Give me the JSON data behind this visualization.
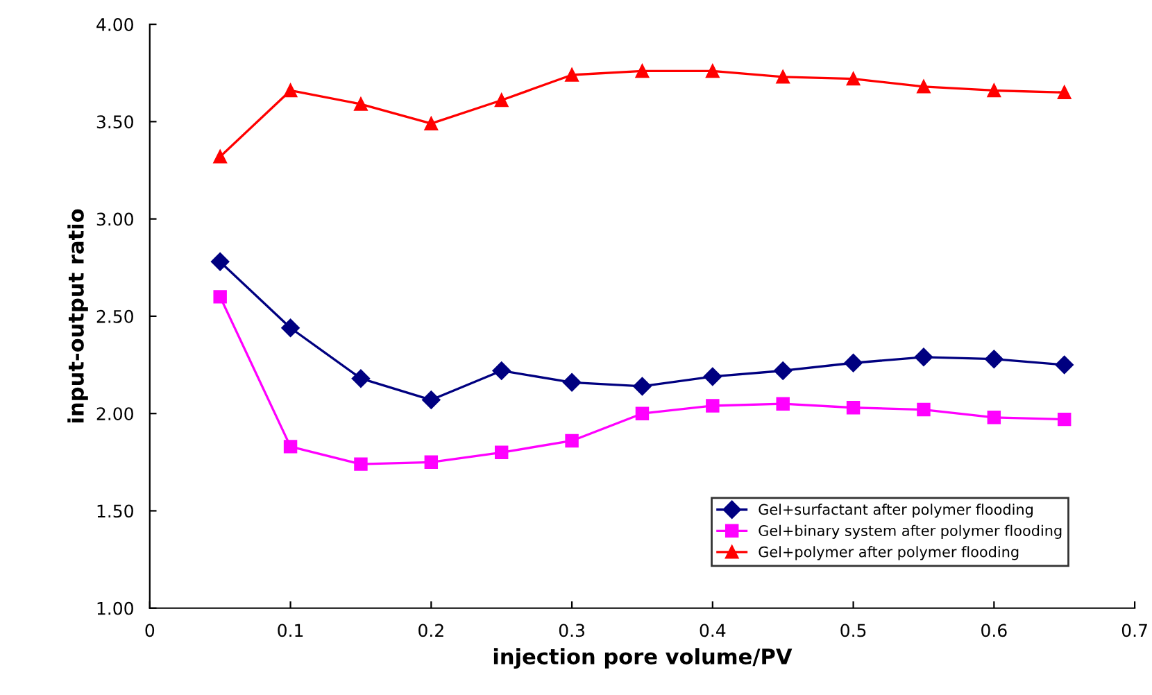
{
  "chart_data": {
    "type": "line",
    "xlabel": "injection pore volume/PV",
    "ylabel": "input-output ratio",
    "x": [
      0.05,
      0.1,
      0.15,
      0.2,
      0.25,
      0.3,
      0.35,
      0.4,
      0.45,
      0.5,
      0.55,
      0.6,
      0.65
    ],
    "series": [
      {
        "name": "Gel+surfactant after polymer flooding",
        "color": "#000080",
        "marker": "diamond",
        "values": [
          2.78,
          2.44,
          2.18,
          2.07,
          2.22,
          2.16,
          2.14,
          2.19,
          2.22,
          2.26,
          2.29,
          2.28,
          2.25
        ]
      },
      {
        "name": "Gel+binary system after polymer flooding",
        "color": "#ff00ff",
        "marker": "square",
        "values": [
          2.6,
          1.83,
          1.74,
          1.75,
          1.8,
          1.86,
          2.0,
          2.04,
          2.05,
          2.03,
          2.02,
          1.98,
          1.97
        ]
      },
      {
        "name": "Gel+polymer after polymer flooding",
        "color": "#ff0000",
        "marker": "triangle",
        "values": [
          3.32,
          3.66,
          3.59,
          3.49,
          3.61,
          3.74,
          3.76,
          3.76,
          3.73,
          3.72,
          3.68,
          3.66,
          3.65
        ]
      }
    ],
    "xlim": [
      0,
      0.7
    ],
    "xticks": [
      0,
      0.1,
      0.2,
      0.3,
      0.4,
      0.5,
      0.6,
      0.7
    ],
    "ylim": [
      1,
      4
    ],
    "yticks": [
      {
        "value": 1,
        "label": "1.00"
      },
      {
        "value": 1.5,
        "label": "1.50"
      },
      {
        "value": 2,
        "label": "2.00"
      },
      {
        "value": 2.5,
        "label": "2.50"
      },
      {
        "value": 3,
        "label": "3.00"
      },
      {
        "value": 3.5,
        "label": "3.50"
      },
      {
        "value": 4,
        "label": "4.00"
      }
    ],
    "grid": false,
    "legend": "bottom right"
  }
}
